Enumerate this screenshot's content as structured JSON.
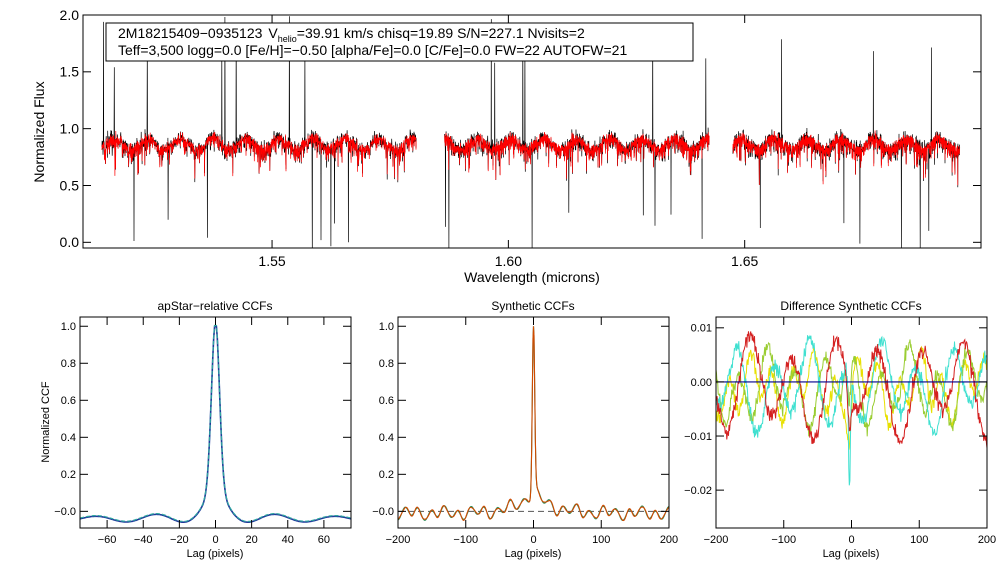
{
  "chart_data": [
    {
      "id": "spectrum",
      "type": "line",
      "title_line1_a": "2M18215409−0935123",
      "title_line1_v": "V",
      "title_line1_vsub": "helio",
      "title_line1_b": "=39.91 km/s  chisq=19.89  S/N=227.1  Nvisits=2",
      "title_line2": "Teff=3,500 logg=0.0 [Fe/H]=−0.50 [alpha/Fe]=0.0 [C/Fe]=0.0 FW=22 AUTOFW=21",
      "xlabel": "Wavelength (microns)",
      "ylabel": "Normalized Flux",
      "xlim": [
        1.51,
        1.7
      ],
      "ylim": [
        -0.05,
        2.0
      ],
      "xticks": [
        "1.55",
        "1.60",
        "1.65"
      ],
      "xtick_values": [
        1.55,
        1.6,
        1.65
      ],
      "yticks": [
        "0.0",
        "0.5",
        "1.0",
        "1.5",
        "2.0"
      ],
      "ytick_values": [
        0.0,
        0.5,
        1.0,
        1.5,
        2.0
      ],
      "chip_ranges": [
        [
          1.514,
          1.5805
        ],
        [
          1.5865,
          1.6425
        ],
        [
          1.6475,
          1.6955
        ]
      ],
      "series": [
        {
          "name": "observed",
          "color": "#000000"
        },
        {
          "name": "model",
          "color": "#ff0000"
        }
      ]
    },
    {
      "id": "apstar-ccf",
      "type": "line",
      "title": "apStar−relative CCFs",
      "xlabel": "Lag (pixels)",
      "ylabel": "Normalized CCF",
      "xlim": [
        -75,
        75
      ],
      "ylim": [
        -0.09,
        1.05
      ],
      "xticks": [
        "−60",
        "−40",
        "−20",
        "0",
        "20",
        "40",
        "60"
      ],
      "xtick_values": [
        -60,
        -40,
        -20,
        0,
        20,
        40,
        60
      ],
      "yticks": [
        "−0.0",
        "0.2",
        "0.4",
        "0.6",
        "0.8",
        "1.0"
      ],
      "ytick_values": [
        0.0,
        0.2,
        0.4,
        0.6,
        0.8,
        1.0
      ],
      "peak_lag": 0,
      "peak_value": 1.0,
      "series": [
        {
          "name": "visit 1",
          "color": "#1f3a9a"
        },
        {
          "name": "visit 2",
          "color": "#2fa8a0"
        }
      ]
    },
    {
      "id": "synthetic-ccf",
      "type": "line",
      "title": "Synthetic CCFs",
      "xlabel": "Lag (pixels)",
      "ylabel": "",
      "xlim": [
        -200,
        200
      ],
      "ylim": [
        -0.09,
        1.05
      ],
      "xticks": [
        "−200",
        "−100",
        "0",
        "100",
        "200"
      ],
      "xtick_values": [
        -200,
        -100,
        0,
        100,
        200
      ],
      "yticks": [
        "−0.0",
        "0.2",
        "0.4",
        "0.6",
        "0.8",
        "1.0"
      ],
      "ytick_values": [
        0.0,
        0.2,
        0.4,
        0.6,
        0.8,
        1.0
      ],
      "reference_level": 0.0,
      "peak_lag": 0,
      "peak_value": 1.0,
      "series": [
        {
          "name": "ccf 1",
          "color": "#2e8b57"
        },
        {
          "name": "ccf 2",
          "color": "#d04a00"
        }
      ]
    },
    {
      "id": "difference-ccf",
      "type": "line",
      "title": "Difference Synthetic CCFs",
      "xlabel": "Lag (pixels)",
      "ylabel": "",
      "xlim": [
        -200,
        200
      ],
      "ylim": [
        -0.027,
        0.012
      ],
      "xticks": [
        "−200",
        "−100",
        "0",
        "100",
        "200"
      ],
      "xtick_values": [
        -200,
        -100,
        0,
        100,
        200
      ],
      "yticks": [
        "−0.02",
        "−0.01",
        "0.00",
        "0.01"
      ],
      "ytick_values": [
        -0.02,
        -0.01,
        0.0,
        0.01
      ],
      "reference_level": 0.0,
      "min_value": -0.0245,
      "min_lag": -3,
      "series": [
        {
          "name": "diff 1",
          "color": "#e8e000"
        },
        {
          "name": "diff 2",
          "color": "#9acd32"
        },
        {
          "name": "diff 3",
          "color": "#40e0d0"
        },
        {
          "name": "diff 4",
          "color": "#d42020"
        }
      ]
    }
  ]
}
